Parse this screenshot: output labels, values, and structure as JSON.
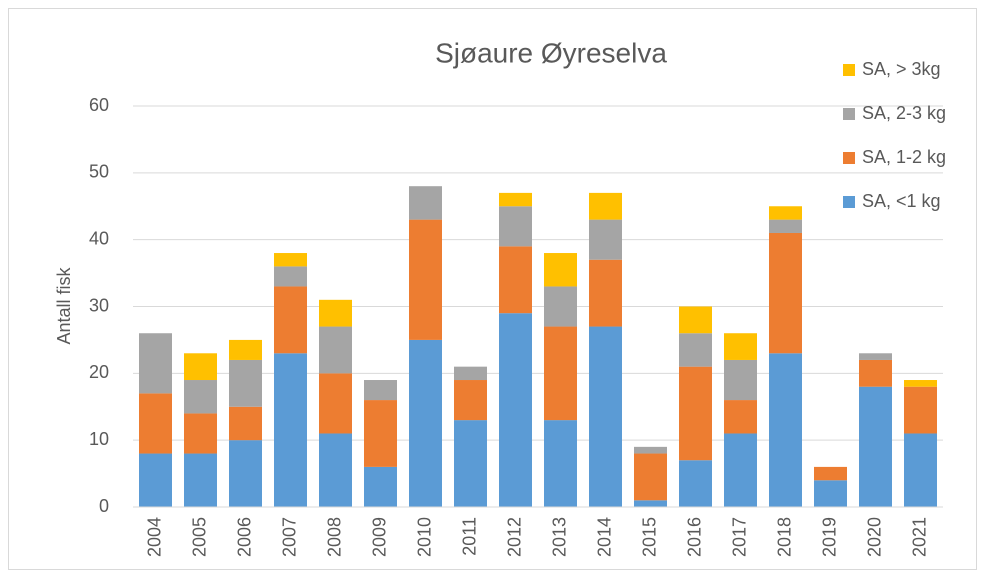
{
  "chart_data": {
    "type": "stacked-bar",
    "title": "Sjøaure Øyreselva",
    "y_label": "Antall fisk",
    "categories": [
      "2004",
      "2005",
      "2006",
      "2007",
      "2008",
      "2009",
      "2010",
      "2011",
      "2012",
      "2013",
      "2014",
      "2015",
      "2016",
      "2017",
      "2018",
      "2019",
      "2020",
      "2021"
    ],
    "series": [
      {
        "name": "SA, <1 kg",
        "color": "#5b9bd5",
        "values": [
          8,
          8,
          10,
          23,
          11,
          6,
          25,
          13,
          29,
          13,
          27,
          1,
          7,
          11,
          23,
          4,
          18,
          11
        ]
      },
      {
        "name": "SA, 1-2 kg",
        "color": "#ed7d31",
        "values": [
          9,
          6,
          5,
          10,
          9,
          10,
          18,
          6,
          10,
          14,
          10,
          7,
          14,
          5,
          18,
          2,
          4,
          7
        ]
      },
      {
        "name": "SA, 2-3 kg",
        "color": "#a5a5a5",
        "values": [
          9,
          5,
          7,
          3,
          7,
          3,
          5,
          2,
          6,
          6,
          6,
          1,
          5,
          6,
          2,
          0,
          1,
          0
        ]
      },
      {
        "name": "SA, > 3kg",
        "color": "#ffc000",
        "values": [
          0,
          4,
          3,
          2,
          4,
          0,
          0,
          0,
          2,
          5,
          4,
          0,
          4,
          4,
          2,
          0,
          0,
          1
        ]
      }
    ],
    "ylim": [
      0,
      60
    ],
    "yticks": [
      0,
      10,
      20,
      30,
      40,
      50,
      60
    ],
    "grid": true,
    "legend": "top-right"
  }
}
